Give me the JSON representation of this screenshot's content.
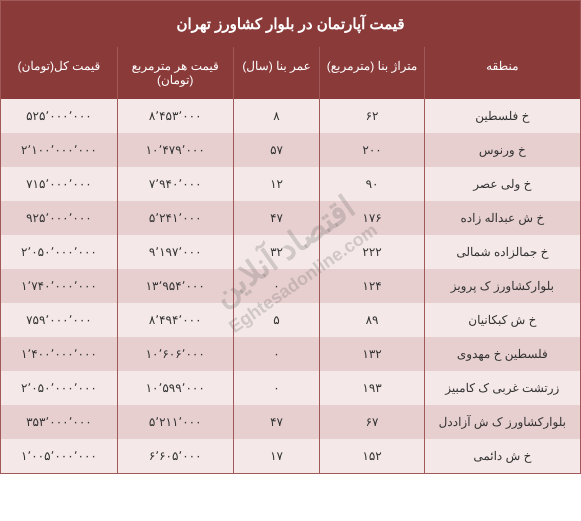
{
  "title": "قیمت آپارتمان در بلوار کشاورز تهران",
  "headers": {
    "region": "منطقه",
    "area": "متراژ بنا (مترمربع)",
    "age": "عمر بنا (سال)",
    "price_sqm": "قیمت هر مترمربع (تومان)",
    "price_total": "قیمت کل(تومان)"
  },
  "rows": [
    {
      "region": "خ فلسطین",
      "area": "۶۲",
      "age": "۸",
      "price_sqm": "۸٬۴۵۳٬۰۰۰",
      "price_total": "۵۲۵٬۰۰۰٬۰۰۰"
    },
    {
      "region": "خ ورنوس",
      "area": "۲۰۰",
      "age": "۵۷",
      "price_sqm": "۱۰٬۴۷۹٬۰۰۰",
      "price_total": "۲٬۱۰۰٬۰۰۰٬۰۰۰"
    },
    {
      "region": "خ ولی عصر",
      "area": "۹۰",
      "age": "۱۲",
      "price_sqm": "۷٬۹۴۰٬۰۰۰",
      "price_total": "۷۱۵٬۰۰۰٬۰۰۰"
    },
    {
      "region": "خ ش عبداله زاده",
      "area": "۱۷۶",
      "age": "۴۷",
      "price_sqm": "۵٬۲۴۱٬۰۰۰",
      "price_total": "۹۲۵٬۰۰۰٬۰۰۰"
    },
    {
      "region": "خ جمالزاده شمالی",
      "area": "۲۲۲",
      "age": "۳۲",
      "price_sqm": "۹٬۱۹۷٬۰۰۰",
      "price_total": "۲٬۰۵۰٬۰۰۰٬۰۰۰"
    },
    {
      "region": "بلوارکشاورز ک پرویز",
      "area": "۱۲۴",
      "age": "۰",
      "price_sqm": "۱۳٬۹۵۴٬۰۰۰",
      "price_total": "۱٬۷۴۰٬۰۰۰٬۰۰۰"
    },
    {
      "region": "خ ش کبکانیان",
      "area": "۸۹",
      "age": "۵",
      "price_sqm": "۸٬۴۹۴٬۰۰۰",
      "price_total": "۷۵۹٬۰۰۰٬۰۰۰"
    },
    {
      "region": "فلسطین خ مهدوی",
      "area": "۱۳۲",
      "age": "۰",
      "price_sqm": "۱۰٬۶۰۶٬۰۰۰",
      "price_total": "۱٬۴۰۰٬۰۰۰٬۰۰۰"
    },
    {
      "region": "زرتشت غربی ک کامبیز",
      "area": "۱۹۳",
      "age": "۰",
      "price_sqm": "۱۰٬۵۹۹٬۰۰۰",
      "price_total": "۲٬۰۵۰٬۰۰۰٬۰۰۰"
    },
    {
      "region": "بلوارکشاورز ک ش آزاددل",
      "area": "۶۷",
      "age": "۴۷",
      "price_sqm": "۵٬۲۱۱٬۰۰۰",
      "price_total": "۳۵۳٬۰۰۰٬۰۰۰"
    },
    {
      "region": "خ ش دائمی",
      "area": "۱۵۲",
      "age": "۱۷",
      "price_sqm": "۶٬۶۰۵٬۰۰۰",
      "price_total": "۱٬۰۰۵٬۰۰۰٬۰۰۰"
    }
  ],
  "watermark": {
    "main": "اقتصاد آنلاین",
    "sub": "Eghtesadonline.com"
  },
  "colors": {
    "header_bg": "#8b3a3a",
    "header_text": "#ffffff",
    "row_even": "#f5e8e8",
    "row_odd": "#e8cfcf",
    "cell_text": "#333333",
    "border": "#a05858"
  }
}
